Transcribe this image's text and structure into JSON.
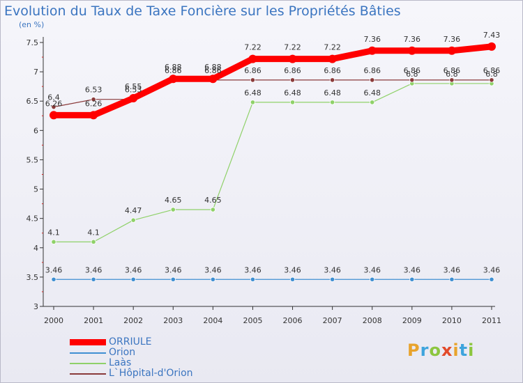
{
  "title": "Evolution du Taux de Taxe Foncière sur les Propriétés Bâties",
  "unit_label": "(en %)",
  "logo": {
    "text": "Proxiti",
    "letters": [
      {
        "ch": "P",
        "color": "#e8a32c"
      },
      {
        "ch": "r",
        "color": "#3ea4dd"
      },
      {
        "ch": "o",
        "color": "#8cc63f"
      },
      {
        "ch": "x",
        "color": "#e24a2b"
      },
      {
        "ch": "i",
        "color": "#e8a32c"
      },
      {
        "ch": "t",
        "color": "#3ea4dd"
      },
      {
        "ch": "i",
        "color": "#8cc63f"
      }
    ]
  },
  "chart_data": {
    "type": "line",
    "title": "Evolution du Taux de Taxe Foncière sur les Propriétés Bâties",
    "ylabel": "(en %)",
    "xlabel": "",
    "x": [
      "2000",
      "2001",
      "2002",
      "2003",
      "2004",
      "2005",
      "2006",
      "2007",
      "2008",
      "2009",
      "2010",
      "2011"
    ],
    "ylim": [
      3,
      7.5
    ],
    "yticks": [
      "3",
      "3.5",
      "4",
      "4.5",
      "5",
      "5.5",
      "6",
      "6.5",
      "7",
      "7.5"
    ],
    "grid": false,
    "legend_position": "bottom-left",
    "series": [
      {
        "name": "ORRIULE",
        "color": "#ff0000",
        "values": [
          6.26,
          6.26,
          6.55,
          6.88,
          6.88,
          7.22,
          7.22,
          7.22,
          7.36,
          7.36,
          7.36,
          7.43
        ],
        "labels": [
          "6.26",
          "6.26",
          "6.55",
          "6.88",
          "6.88",
          "7.22",
          "7.22",
          "7.22",
          "7.36",
          "7.36",
          "7.36",
          "7.43"
        ]
      },
      {
        "name": "Orion",
        "color": "#3f8fd2",
        "values": [
          3.46,
          3.46,
          3.46,
          3.46,
          3.46,
          3.46,
          3.46,
          3.46,
          3.46,
          3.46,
          3.46,
          3.46
        ],
        "labels": [
          "3.46",
          "3.46",
          "3.46",
          "3.46",
          "3.46",
          "3.46",
          "3.46",
          "3.46",
          "3.46",
          "3.46",
          "3.46",
          "3.46"
        ]
      },
      {
        "name": "Laàs",
        "color": "#8fd169",
        "values": [
          4.1,
          4.1,
          4.47,
          4.65,
          4.65,
          6.48,
          6.48,
          6.48,
          6.48,
          6.8,
          6.8,
          6.8
        ],
        "labels": [
          "4.1",
          "4.1",
          "4.47",
          "4.65",
          "4.65",
          "6.48",
          "6.48",
          "6.48",
          "6.48",
          "6.8",
          "6.8",
          "6.8"
        ]
      },
      {
        "name": "L`Hôpital-d'Orion",
        "color": "#8a3a3a",
        "values": [
          6.4,
          6.53,
          6.53,
          6.86,
          6.86,
          6.86,
          6.86,
          6.86,
          6.86,
          6.86,
          6.86,
          6.86
        ],
        "labels": [
          "6.4",
          "6.53",
          "6.53",
          "6.86",
          "6.86",
          "6.86",
          "6.86",
          "6.86",
          "6.86",
          "6.86",
          "6.86",
          "6.86"
        ]
      }
    ]
  }
}
